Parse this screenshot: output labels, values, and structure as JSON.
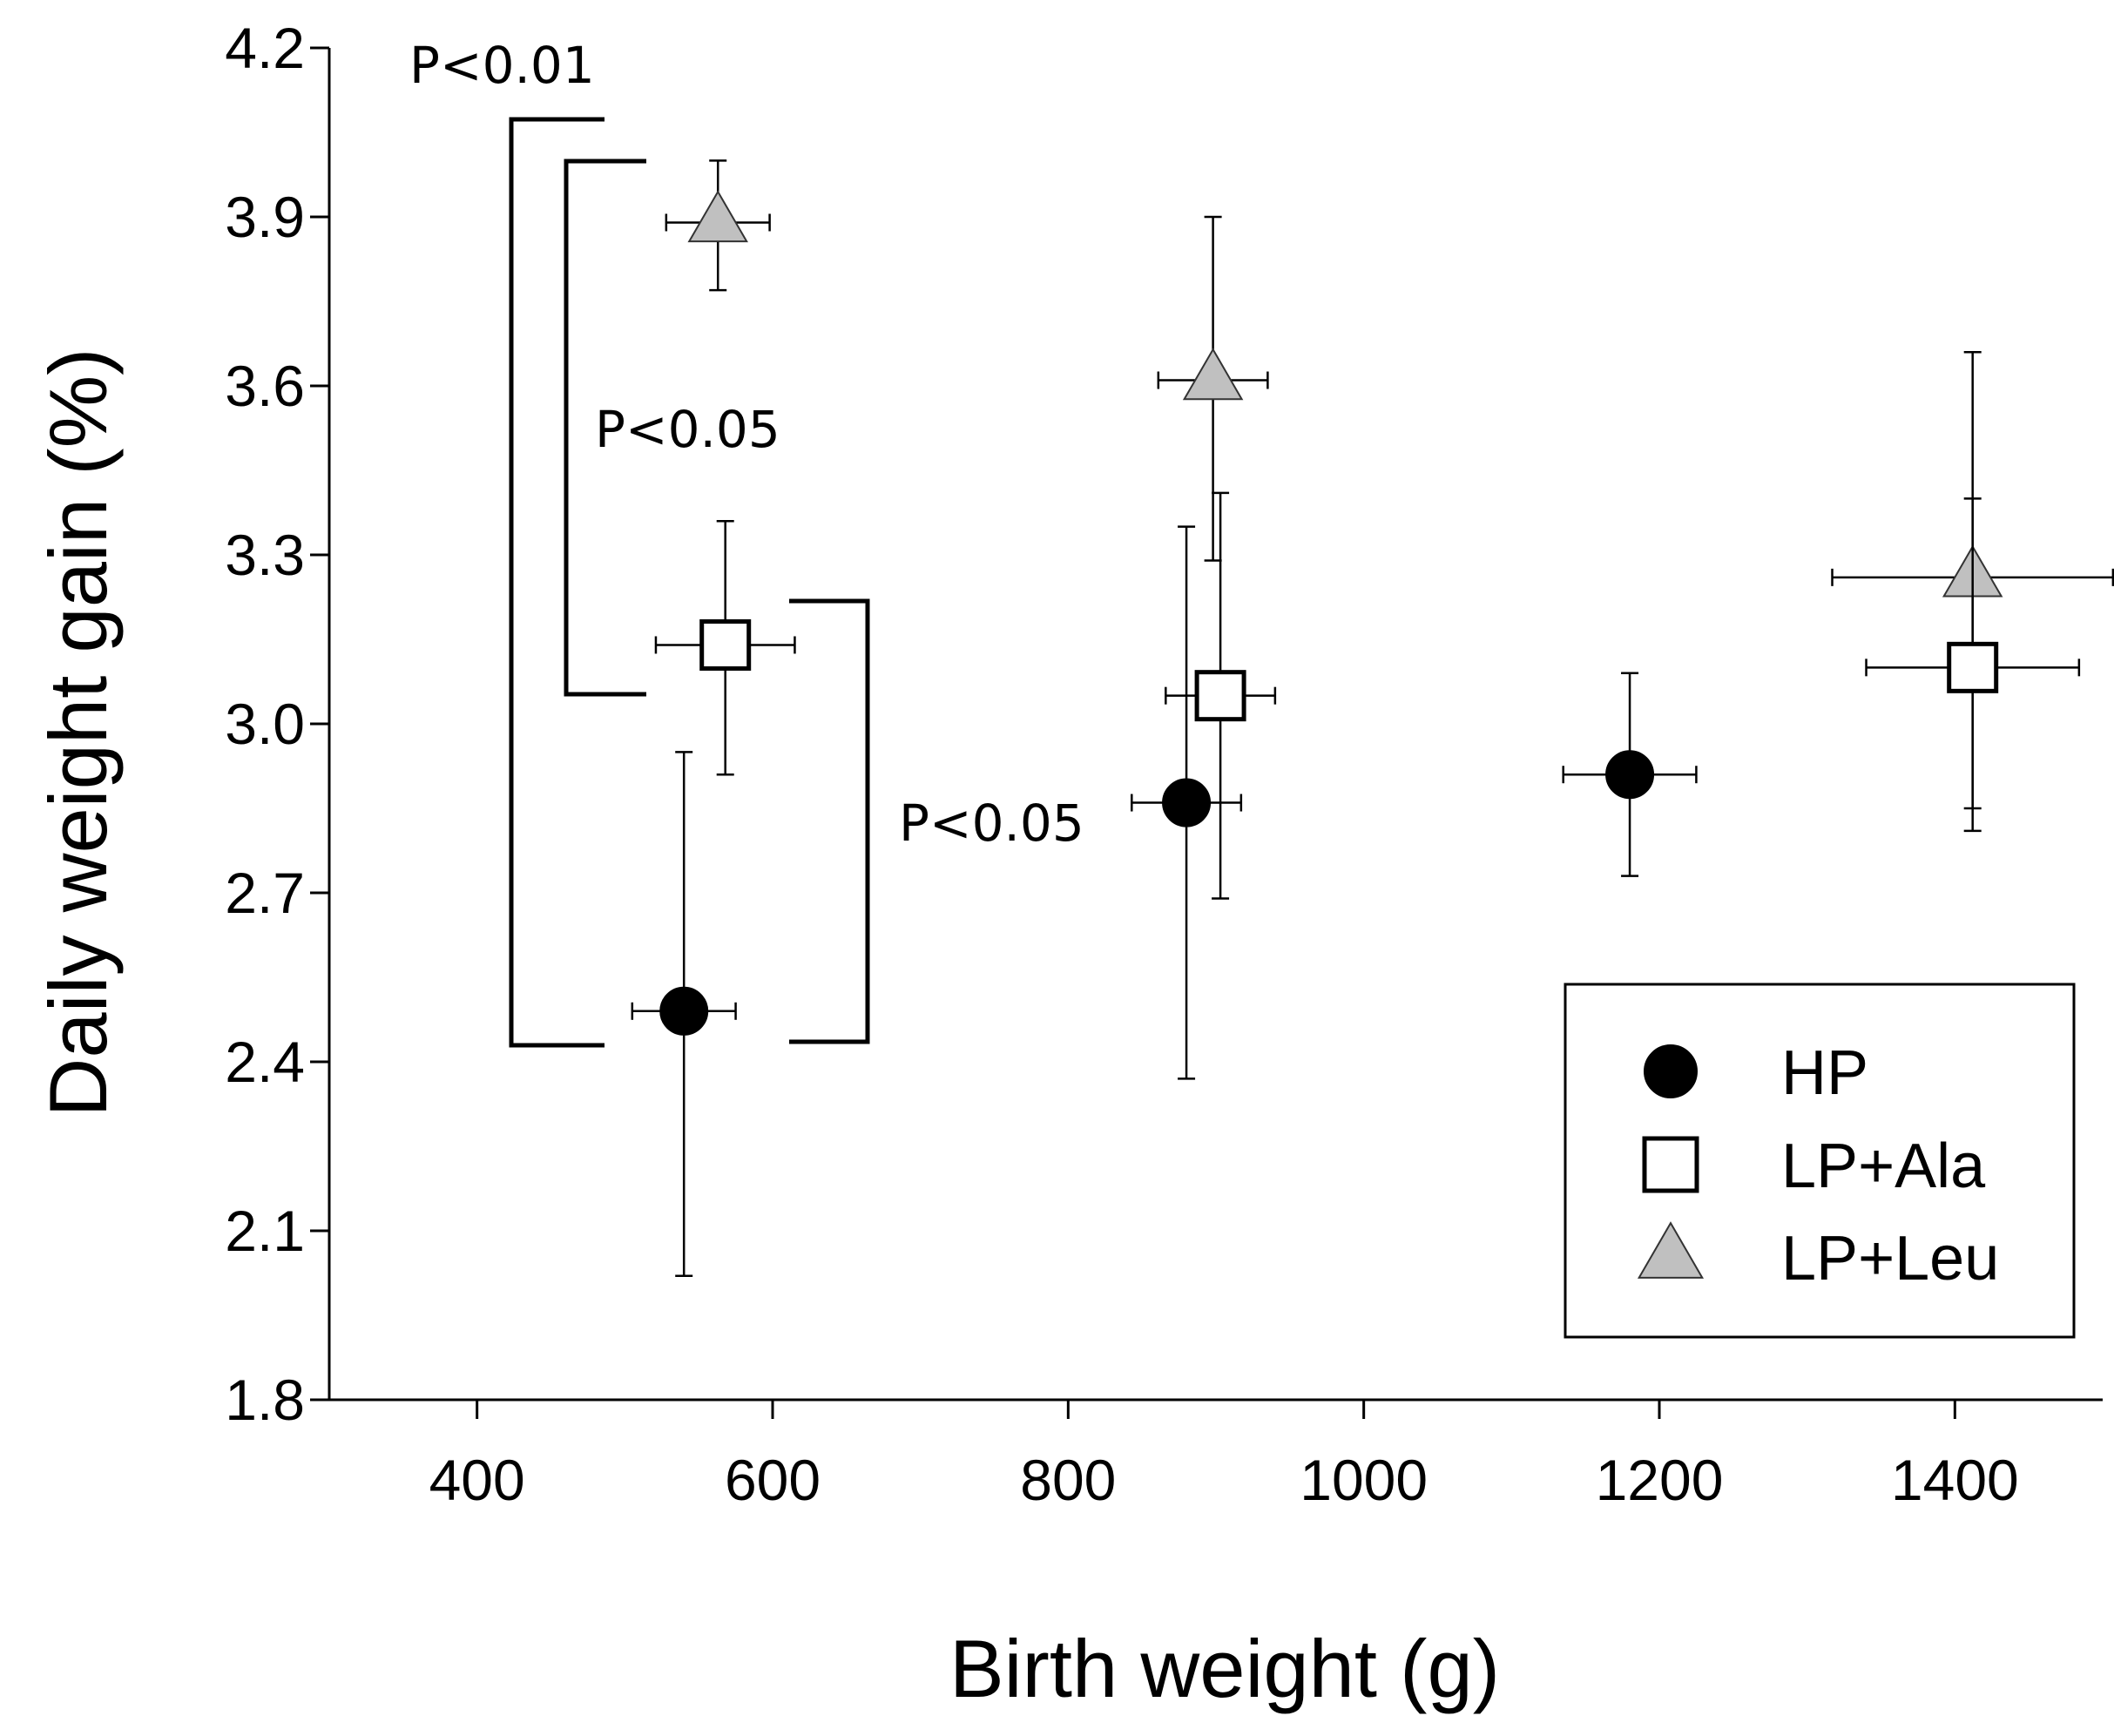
{
  "chart_data": {
    "type": "scatter",
    "title": "",
    "xlabel": "Birth weight (g)",
    "ylabel": "Daily weight gain (%)",
    "xlim": [
      300,
      1500
    ],
    "ylim": [
      1.8,
      4.2
    ],
    "xticks": [
      400,
      600,
      800,
      1000,
      1200,
      1400
    ],
    "yticks": [
      "1.8",
      "2.1",
      "2.4",
      "2.7",
      "3.0",
      "3.3",
      "3.6",
      "3.9",
      "4.2"
    ],
    "grid": false,
    "legend_position": "bottom-right",
    "series": [
      {
        "name": "HP",
        "marker": "filled-circle",
        "color": "#000000",
        "points": [
          {
            "x": 540,
            "y": 2.49,
            "xerr": 35,
            "yerr_low": 0.47,
            "yerr_high": 0.46
          },
          {
            "x": 880,
            "y": 2.86,
            "xerr": 37,
            "yerr_low": 0.49,
            "yerr_high": 0.49
          },
          {
            "x": 1180,
            "y": 2.91,
            "xerr": 45,
            "yerr_low": 0.18,
            "yerr_high": 0.18
          }
        ]
      },
      {
        "name": "LP+Ala",
        "marker": "open-square",
        "color": "#ffffff",
        "points": [
          {
            "x": 568,
            "y": 3.14,
            "xerr": 47,
            "yerr_low": 0.23,
            "yerr_high": 0.22
          },
          {
            "x": 903,
            "y": 3.05,
            "xerr": 37,
            "yerr_low": 0.36,
            "yerr_high": 0.36
          },
          {
            "x": 1412,
            "y": 3.1,
            "xerr": 72,
            "yerr_low": 0.25,
            "yerr_high": 0.3
          }
        ]
      },
      {
        "name": "LP+Leu",
        "marker": "triangle",
        "color": "#c0c0c0",
        "points": [
          {
            "x": 563,
            "y": 3.89,
            "xerr": 35,
            "yerr_low": 0.12,
            "yerr_high": 0.11
          },
          {
            "x": 898,
            "y": 3.61,
            "xerr": 37,
            "yerr_low": 0.32,
            "yerr_high": 0.29
          },
          {
            "x": 1412,
            "y": 3.26,
            "xerr": 95,
            "yerr_low": 0.45,
            "yerr_high": 0.4
          }
        ]
      }
    ],
    "annotations": [
      {
        "text": "P<0.01",
        "between": [
          "HP",
          "LP+Leu"
        ],
        "at_x": 600
      },
      {
        "text": "P<0.05",
        "between": [
          "LP+Ala",
          "LP+Leu"
        ],
        "at_x": 600
      },
      {
        "text": "P<0.05",
        "between": [
          "HP",
          "LP+Ala"
        ],
        "at_x": 600
      }
    ]
  }
}
